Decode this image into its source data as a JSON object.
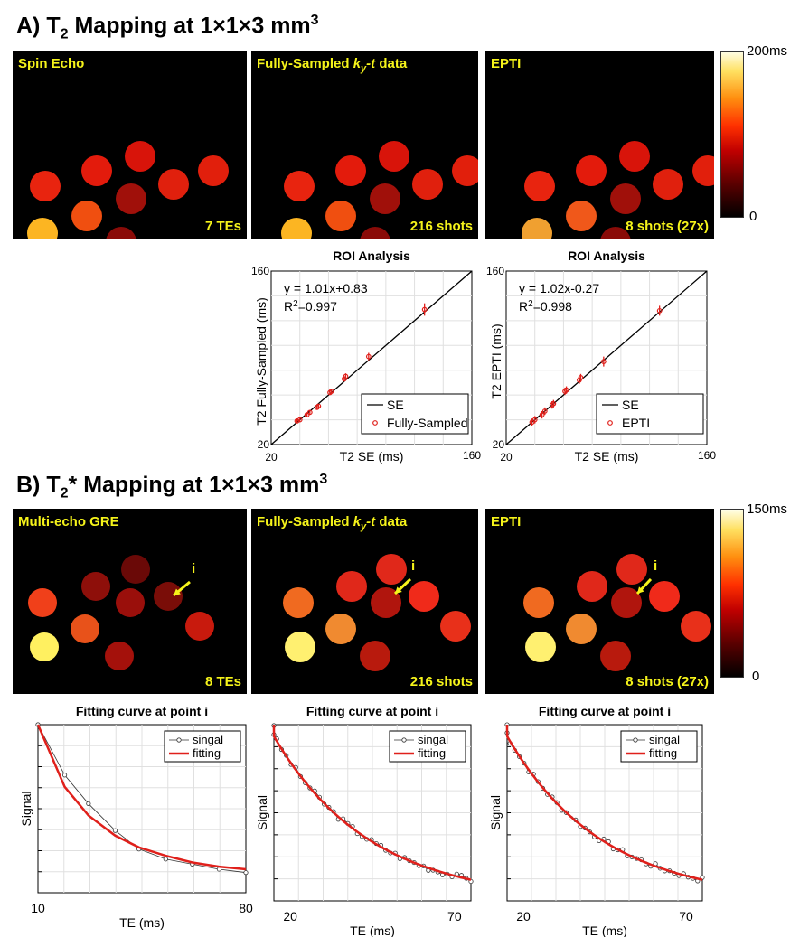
{
  "sectionA": {
    "label": "A) T",
    "sub": "2",
    "rest": " Mapping at 1×1×3 mm",
    "sup": "3",
    "panels": [
      {
        "title": "Spin Echo",
        "note": "7 TEs"
      },
      {
        "title_pre": "Fully-Sampled ",
        "title_k": "k",
        "title_sub": "y",
        "title_post": "-t",
        "title_end": " data",
        "note": "216 shots"
      },
      {
        "title": "EPTI",
        "note": "8 shots (27x)"
      }
    ],
    "colorbar": {
      "max": "200ms",
      "min": "0"
    }
  },
  "sectionB": {
    "label": "B) T",
    "sub": "2",
    "rest": "* Mapping at 1×1×3 mm",
    "sup": "3",
    "panels": [
      {
        "title": "Multi-echo GRE",
        "note": "8 TEs",
        "marker": "i"
      },
      {
        "title_pre": "Fully-Sampled ",
        "title_k": "k",
        "title_sub": "y",
        "title_post": "-t",
        "title_end": " data",
        "note": "216 shots",
        "marker": "i"
      },
      {
        "title": "EPTI",
        "note": "8 shots (27x)",
        "marker": "i"
      }
    ],
    "colorbar": {
      "max": "150ms",
      "min": "0"
    }
  },
  "colors": {
    "panel_text": "#f5f31a",
    "fit": "#e0201b",
    "marker_red": "#e0201b"
  },
  "chart_data": [
    {
      "type": "scatter",
      "title": "ROI Analysis",
      "xlabel": "T2 SE (ms)",
      "ylabel": "T2 Fully-Sampled (ms)",
      "xlim": [
        20,
        160
      ],
      "ylim": [
        20,
        160
      ],
      "tick_labels": {
        "xmin": "20",
        "xmax": "160",
        "ymin": "20",
        "ymax": "160"
      },
      "equation": "y = 1.01x+0.83",
      "r2_pre": "R",
      "r2_sup": "2",
      "r2_post": "=0.997",
      "legend": [
        "SE",
        "Fully-Sampled"
      ],
      "series": [
        {
          "name": "Fully-Sampled",
          "x": [
            38,
            40,
            45,
            47,
            52,
            53,
            61,
            62,
            71,
            72,
            88,
            127
          ],
          "y": [
            39,
            40,
            44,
            46,
            50,
            51,
            62,
            63,
            73,
            75,
            91,
            129
          ],
          "err": [
            1.5,
            1.5,
            1.5,
            1.5,
            1.5,
            1.5,
            2,
            2,
            2,
            2.5,
            3,
            5
          ]
        }
      ]
    },
    {
      "type": "scatter",
      "title": "ROI Analysis",
      "xlabel": "T2 SE (ms)",
      "ylabel": "T2 EPTI (ms)",
      "xlim": [
        20,
        160
      ],
      "ylim": [
        20,
        160
      ],
      "tick_labels": {
        "xmin": "20",
        "xmax": "160",
        "ymin": "20",
        "ymax": "160"
      },
      "equation": "y = 1.02x-0.27",
      "r2_pre": "R",
      "r2_sup": "2",
      "r2_post": "=0.998",
      "legend": [
        "SE",
        "EPTI"
      ],
      "series": [
        {
          "name": "EPTI",
          "x": [
            38,
            40,
            45,
            47,
            52,
            53,
            61,
            62,
            71,
            72,
            88,
            127
          ],
          "y": [
            38,
            40,
            44,
            47,
            52,
            53,
            63,
            64,
            72,
            74,
            87,
            128
          ],
          "err": [
            3,
            3,
            3,
            3,
            3,
            3,
            3,
            3,
            3,
            3,
            4,
            4
          ]
        }
      ]
    },
    {
      "type": "line",
      "title": "Fitting curve at point i",
      "xlabel": "TE (ms)",
      "ylabel": "Signal",
      "xlim": [
        10,
        80
      ],
      "tick_labels": {
        "xmin": "10",
        "xmax": "80"
      },
      "legend": [
        "singal",
        "fitting"
      ],
      "signal": {
        "x": [
          10,
          19,
          27,
          36,
          44,
          53,
          62,
          71,
          80
        ],
        "y": [
          1.0,
          0.7,
          0.53,
          0.37,
          0.26,
          0.2,
          0.17,
          0.14,
          0.12
        ]
      },
      "fitting": {
        "x": [
          10,
          19,
          27,
          36,
          44,
          53,
          62,
          71,
          80
        ],
        "y": [
          1.0,
          0.63,
          0.46,
          0.34,
          0.27,
          0.22,
          0.18,
          0.155,
          0.14
        ]
      }
    },
    {
      "type": "line",
      "title": "Fitting curve at point i",
      "xlabel": "TE (ms)",
      "ylabel": "Signal",
      "xlim": [
        15,
        75
      ],
      "tick_labels": {
        "x1": "20",
        "x2": "70"
      },
      "legend": [
        "singal",
        "fitting"
      ],
      "decay": {
        "start": 1.0,
        "end": 0.12,
        "n": 44,
        "noise_seed": 3
      }
    },
    {
      "type": "line",
      "title": "Fitting curve at point i",
      "xlabel": "TE (ms)",
      "ylabel": "Signal",
      "xlim": [
        15,
        75
      ],
      "tick_labels": {
        "x1": "20",
        "x2": "70"
      },
      "legend": [
        "singal",
        "fitting"
      ],
      "decay": {
        "start": 1.0,
        "end": 0.12,
        "n": 44,
        "noise_seed": 7
      }
    }
  ]
}
